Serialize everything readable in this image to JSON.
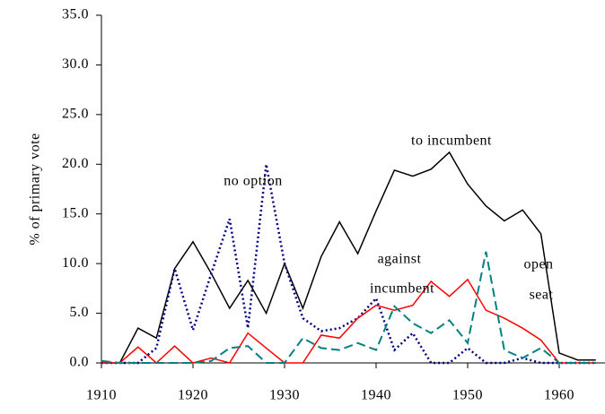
{
  "chart_data": {
    "type": "line",
    "y_label": "% of primary vote",
    "annotations": [
      "no option",
      "to incumbent",
      "against",
      "incumbent",
      "open",
      "seat"
    ],
    "x": [
      1910,
      1912,
      1914,
      1916,
      1918,
      1920,
      1922,
      1924,
      1926,
      1928,
      1930,
      1932,
      1934,
      1936,
      1938,
      1940,
      1942,
      1944,
      1946,
      1948,
      1950,
      1952,
      1954,
      1956,
      1958,
      1960,
      1962,
      1964
    ],
    "series": [
      {
        "color": "#000000",
        "dash": "",
        "width": 1.5,
        "values": [
          0,
          0,
          3.5,
          2.5,
          9.5,
          12.2,
          9,
          5.5,
          8.3,
          5,
          10,
          5.5,
          10.7,
          14.2,
          11,
          15.3,
          19.4,
          18.8,
          19.5,
          21.2,
          18,
          15.8,
          14.3,
          15.4,
          13,
          1.0,
          0.3,
          0.3
        ]
      },
      {
        "color": "#000080",
        "dash": "2 3",
        "width": 2.5,
        "values": [
          0,
          0,
          0,
          1.5,
          9.5,
          3.3,
          9,
          14.5,
          3.5,
          20,
          10,
          4.5,
          3.2,
          3.5,
          4.5,
          6.5,
          1.3,
          3,
          0,
          0,
          1.5,
          0,
          0,
          0.5,
          0,
          0,
          0,
          0
        ]
      },
      {
        "color": "#ff0000",
        "dash": "",
        "width": 1.5,
        "values": [
          0,
          0,
          1.6,
          0,
          1.7,
          0,
          0.5,
          0,
          3,
          1.5,
          0,
          0,
          2.8,
          2.5,
          4.5,
          5.8,
          5.3,
          5.8,
          8.2,
          6.7,
          8.4,
          5.3,
          4.5,
          3.5,
          2.3,
          0,
          0,
          0
        ]
      },
      {
        "color": "#008080",
        "dash": "10 5",
        "width": 2,
        "values": [
          0.2,
          0,
          0,
          0,
          0,
          0,
          0.2,
          1.5,
          1.7,
          0,
          0,
          2.5,
          1.5,
          1.3,
          2,
          1.3,
          5.7,
          4,
          3,
          4.3,
          2,
          11.2,
          1.3,
          0.5,
          1.5,
          0,
          0,
          0
        ]
      }
    ],
    "xlim": [
      1910,
      1965
    ],
    "xticks": [
      1910,
      1920,
      1930,
      1940,
      1950,
      1960
    ],
    "ylim": [
      0,
      35
    ],
    "yticks": [
      {
        "value": 0,
        "label": "0.0"
      },
      {
        "value": 5,
        "label": "5.0"
      },
      {
        "value": 10,
        "label": "10.0"
      },
      {
        "value": 15,
        "label": "15.0"
      },
      {
        "value": 20,
        "label": "20.0"
      },
      {
        "value": 25,
        "label": "25.0"
      },
      {
        "value": 30,
        "label": "30.0"
      },
      {
        "value": 35,
        "label": "35.0"
      }
    ]
  }
}
